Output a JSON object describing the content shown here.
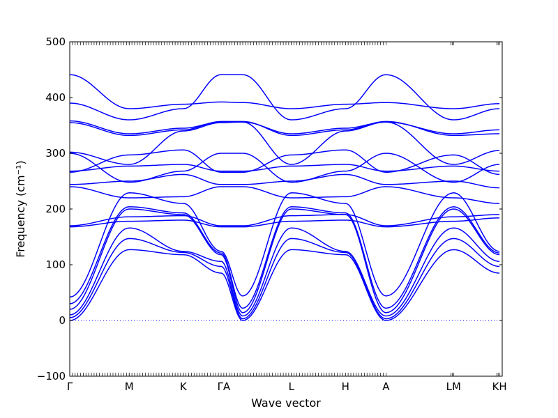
{
  "chart_data": {
    "type": "line",
    "title": "",
    "xlabel": "Wave vector",
    "ylabel": "Frequency (cm⁻¹)",
    "ylim": [
      -100,
      500
    ],
    "yticks": [
      -100,
      0,
      100,
      200,
      300,
      400,
      500
    ],
    "ytick_labels": [
      "−100",
      "0",
      "100",
      "200",
      "300",
      "400",
      "500"
    ],
    "xlim": [
      0,
      8.0
    ],
    "xticks": [
      {
        "x": 0.0,
        "label": "Γ"
      },
      {
        "x": 1.1,
        "label": "M"
      },
      {
        "x": 2.1,
        "label": "K"
      },
      {
        "x": 2.85,
        "label": "ΓA"
      },
      {
        "x": 4.1,
        "label": "L"
      },
      {
        "x": 5.1,
        "label": "H"
      },
      {
        "x": 5.85,
        "label": "A"
      },
      {
        "x": 7.1,
        "label": "LM"
      },
      {
        "x": 7.95,
        "label": "KH"
      }
    ],
    "segments": [
      {
        "from": "Γ",
        "to": "M",
        "x": [
          0.0,
          1.1
        ]
      },
      {
        "from": "M",
        "to": "K",
        "x": [
          1.1,
          2.1
        ]
      },
      {
        "from": "K",
        "to": "Γ",
        "x": [
          2.1,
          2.8
        ]
      },
      {
        "from": "A",
        "to": "L",
        "x": [
          2.85,
          4.1
        ]
      },
      {
        "from": "L",
        "to": "H",
        "x": [
          4.1,
          5.1
        ]
      },
      {
        "from": "H",
        "to": "A",
        "x": [
          5.1,
          5.85
        ]
      },
      {
        "from": "L",
        "to": "M",
        "x": [
          7.05,
          7.1
        ]
      },
      {
        "from": "K",
        "to": "H",
        "x": [
          7.9,
          7.95
        ]
      }
    ],
    "branches": [
      {
        "y": [
          0,
          127,
          118,
          85,
          0,
          127,
          118,
          0,
          127,
          85
        ]
      },
      {
        "y": [
          5,
          147,
          122,
          97,
          3,
          147,
          122,
          3,
          147,
          97
        ]
      },
      {
        "y": [
          10,
          166,
          124,
          106,
          8,
          166,
          124,
          8,
          166,
          106
        ]
      },
      {
        "y": [
          20,
          200,
          190,
          118,
          14,
          200,
          190,
          14,
          200,
          118
        ]
      },
      {
        "y": [
          30,
          204,
          193,
          121,
          22,
          204,
          193,
          22,
          204,
          121
        ]
      },
      {
        "y": [
          42,
          229,
          210,
          124,
          44,
          229,
          210,
          44,
          229,
          124
        ]
      },
      {
        "y": [
          168,
          178,
          180,
          168,
          168,
          178,
          180,
          168,
          178,
          184
        ]
      },
      {
        "y": [
          170,
          186,
          188,
          170,
          170,
          188,
          190,
          170,
          186,
          190
        ]
      },
      {
        "y": [
          240,
          220,
          222,
          240,
          240,
          220,
          222,
          240,
          220,
          210
        ]
      },
      {
        "y": [
          244,
          250,
          262,
          244,
          244,
          250,
          262,
          244,
          250,
          238
        ]
      },
      {
        "y": [
          266,
          297,
          306,
          266,
          266,
          297,
          306,
          266,
          297,
          262
        ]
      },
      {
        "y": [
          268,
          277,
          280,
          268,
          268,
          277,
          280,
          268,
          277,
          268
        ]
      },
      {
        "y": [
          300,
          248,
          268,
          300,
          300,
          248,
          268,
          300,
          248,
          280
        ]
      },
      {
        "y": [
          302,
          280,
          340,
          355,
          356,
          280,
          340,
          356,
          280,
          305
        ]
      },
      {
        "y": [
          355,
          332,
          342,
          357,
          357,
          332,
          342,
          357,
          332,
          335
        ]
      },
      {
        "y": [
          358,
          335,
          345,
          356,
          356,
          335,
          345,
          356,
          335,
          342
        ]
      },
      {
        "y": [
          390,
          360,
          380,
          441,
          441,
          360,
          380,
          441,
          360,
          380
        ]
      },
      {
        "y": [
          441,
          380,
          388,
          392,
          391,
          380,
          388,
          391,
          380,
          389
        ]
      }
    ],
    "branch_x": [
      0.0,
      1.1,
      2.1,
      2.8,
      3.2,
      4.1,
      5.1,
      5.85,
      7.1,
      7.95
    ],
    "zero_line": true,
    "grid": false,
    "legend": "none",
    "colors": {
      "series": "#0000ff",
      "zero_line": "#0000ff",
      "axes": "#000000"
    }
  }
}
